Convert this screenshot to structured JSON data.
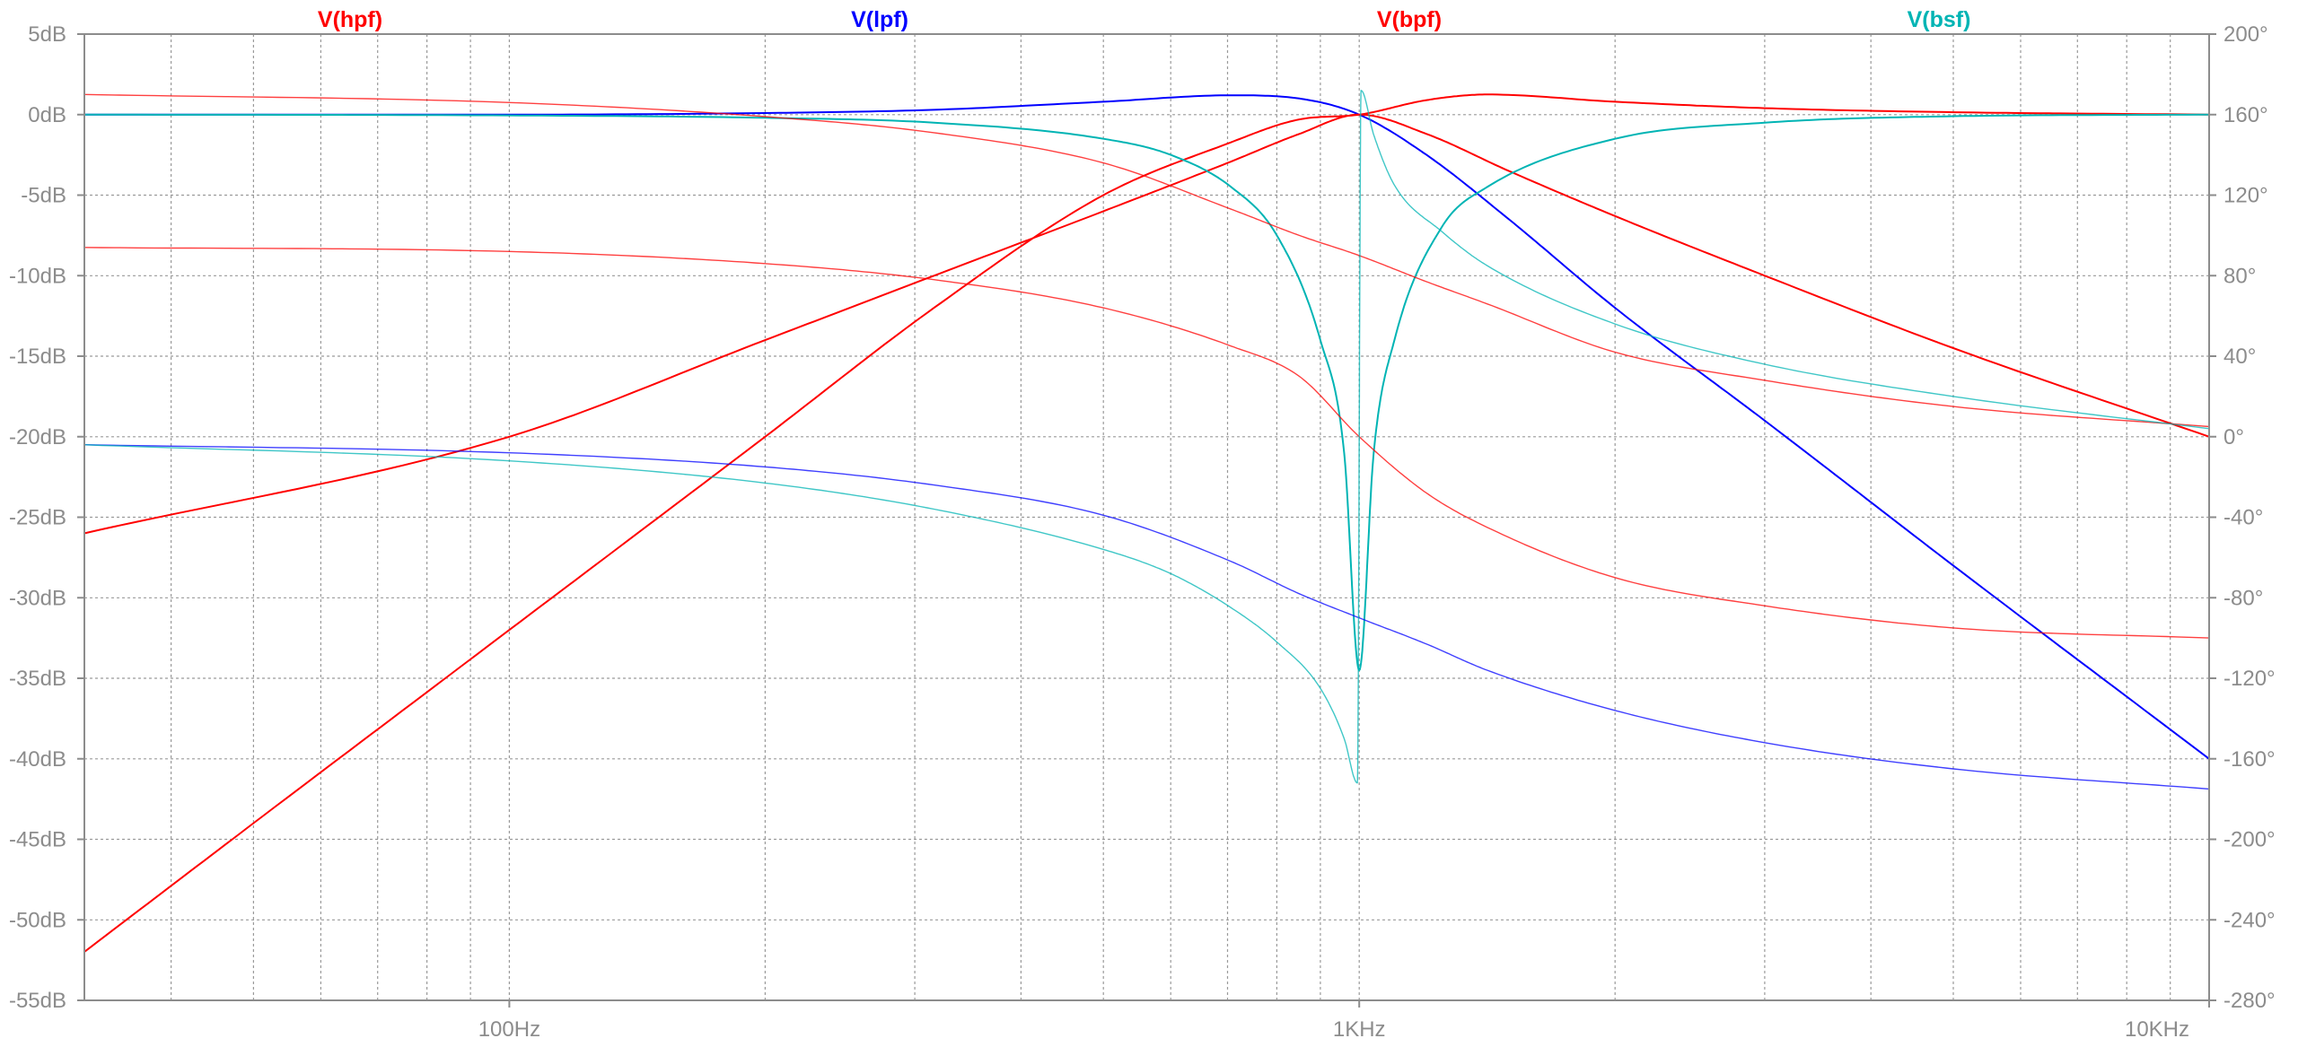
{
  "chart_data": {
    "type": "line",
    "title": "",
    "xlabel": "",
    "ylabel": "",
    "x_scale": "log",
    "xlim": [
      31.623,
      10000
    ],
    "ylim_left": [
      -55,
      5
    ],
    "ylim_right": [
      -280,
      200
    ],
    "grid": true,
    "legend_placement": "top",
    "x_tick_labels": [
      {
        "x": 100,
        "label": "100Hz"
      },
      {
        "x": 1000,
        "label": "1KHz"
      },
      {
        "x": 10000,
        "label": "10KHz"
      }
    ],
    "y_left_ticks": [
      5,
      0,
      -5,
      -10,
      -15,
      -20,
      -25,
      -30,
      -35,
      -40,
      -45,
      -50,
      -55
    ],
    "y_left_tick_labels": [
      "5dB",
      "0dB",
      "-5dB",
      "-10dB",
      "-15dB",
      "-20dB",
      "-25dB",
      "-30dB",
      "-35dB",
      "-40dB",
      "-45dB",
      "-50dB",
      "-55dB"
    ],
    "y_right_ticks": [
      200,
      160,
      120,
      80,
      40,
      0,
      -40,
      -80,
      -120,
      -160,
      -200,
      -240,
      -280
    ],
    "y_right_tick_labels": [
      "200°",
      "160°",
      "120°",
      "80°",
      "40°",
      "0°",
      "-40°",
      "-80°",
      "-120°",
      "-160°",
      "-200°",
      "-240°",
      "-280°"
    ],
    "legend": [
      {
        "label": "V(hpf)",
        "color": "#ff0000"
      },
      {
        "label": "V(lpf)",
        "color": "#0000ff"
      },
      {
        "label": "V(bpf)",
        "color": "#ff0000"
      },
      {
        "label": "V(bsf)",
        "color": "#00b4b4"
      }
    ],
    "series": [
      {
        "name": "V(hpf)",
        "quantity": "magnitude",
        "unit": "dB",
        "axis": "left",
        "color": "#ff0000",
        "x": [
          31.6,
          50,
          100,
          200,
          316,
          500,
          700,
          850,
          1000,
          1200,
          1414,
          2000,
          3000,
          5000,
          10000
        ],
        "y": [
          -52,
          -44,
          -32,
          -20,
          -12,
          -5,
          -1.8,
          -0.3,
          0,
          0.9,
          1.25,
          0.8,
          0.4,
          0.15,
          0
        ]
      },
      {
        "name": "V(lpf)",
        "quantity": "magnitude",
        "unit": "dB",
        "axis": "left",
        "color": "#0000ff",
        "x": [
          31.6,
          100,
          200,
          316,
          500,
          707,
          850,
          1000,
          1200,
          1500,
          2000,
          3000,
          5000,
          10000
        ],
        "y": [
          0,
          0,
          0.1,
          0.3,
          0.8,
          1.2,
          1.0,
          0,
          -2.5,
          -6.5,
          -12,
          -19,
          -28,
          -40
        ]
      },
      {
        "name": "V(bpf)",
        "quantity": "magnitude",
        "unit": "dB",
        "axis": "left",
        "color": "#ff0000",
        "x": [
          31.6,
          100,
          200,
          316,
          500,
          700,
          850,
          1000,
          1200,
          1500,
          2000,
          3000,
          5000,
          10000
        ],
        "y": [
          -26,
          -20,
          -14,
          -10,
          -6,
          -3,
          -1.2,
          0,
          -1.2,
          -3.5,
          -6.3,
          -10,
          -14.5,
          -20
        ]
      },
      {
        "name": "V(bsf)",
        "quantity": "magnitude",
        "unit": "dB",
        "axis": "left",
        "color": "#00b4b4",
        "x": [
          31.6,
          100,
          200,
          316,
          500,
          600,
          707,
          800,
          900,
          960,
          1000,
          1040,
          1100,
          1250,
          1414,
          2000,
          3000,
          5000,
          10000
        ],
        "y": [
          0,
          -0.05,
          -0.2,
          -0.5,
          -1.5,
          -2.5,
          -4.5,
          -7.5,
          -14,
          -21,
          -34.5,
          -21,
          -14,
          -7,
          -4.5,
          -1.5,
          -0.5,
          -0.1,
          0
        ]
      },
      {
        "name": "V(hpf)",
        "quantity": "phase",
        "unit": "deg",
        "axis": "right",
        "color": "#ff0000",
        "x": [
          31.6,
          100,
          200,
          316,
          500,
          707,
          850,
          1000,
          1200,
          1414,
          2000,
          3000,
          5000,
          10000
        ],
        "y": [
          170,
          166,
          159,
          151,
          136,
          113,
          100,
          90,
          77,
          66,
          42,
          28,
          15,
          5
        ]
      },
      {
        "name": "V(lpf)",
        "quantity": "phase",
        "unit": "deg",
        "axis": "right",
        "color": "#0000ff",
        "x": [
          31.6,
          100,
          200,
          316,
          500,
          707,
          850,
          1000,
          1200,
          1414,
          2000,
          3000,
          5000,
          10000
        ],
        "y": [
          -4,
          -8,
          -15,
          -24,
          -39,
          -62,
          -78,
          -90,
          -103,
          -116,
          -136,
          -152,
          -165,
          -175
        ]
      },
      {
        "name": "V(bpf)",
        "quantity": "phase",
        "unit": "deg",
        "axis": "right",
        "color": "#ff0000",
        "x": [
          31.6,
          100,
          200,
          316,
          500,
          707,
          850,
          1000,
          1200,
          1414,
          2000,
          3000,
          5000,
          10000
        ],
        "y": [
          94,
          92,
          86,
          78,
          64,
          45,
          30,
          0,
          -28,
          -45,
          -70,
          -84,
          -95,
          -100
        ]
      },
      {
        "name": "V(bsf)",
        "quantity": "phase",
        "unit": "deg",
        "axis": "right",
        "color": "#00b4b4",
        "x": [
          31.6,
          100,
          200,
          316,
          500,
          600,
          707,
          800,
          900,
          960,
          995,
          1005,
          1040,
          1100,
          1250,
          1414,
          2000,
          3000,
          5000,
          10000
        ],
        "y": [
          -4,
          -12,
          -23,
          -36,
          -56,
          -68,
          -85,
          -102,
          -125,
          -150,
          -172,
          172,
          150,
          125,
          102,
          85,
          56,
          36,
          20,
          4
        ]
      }
    ]
  }
}
